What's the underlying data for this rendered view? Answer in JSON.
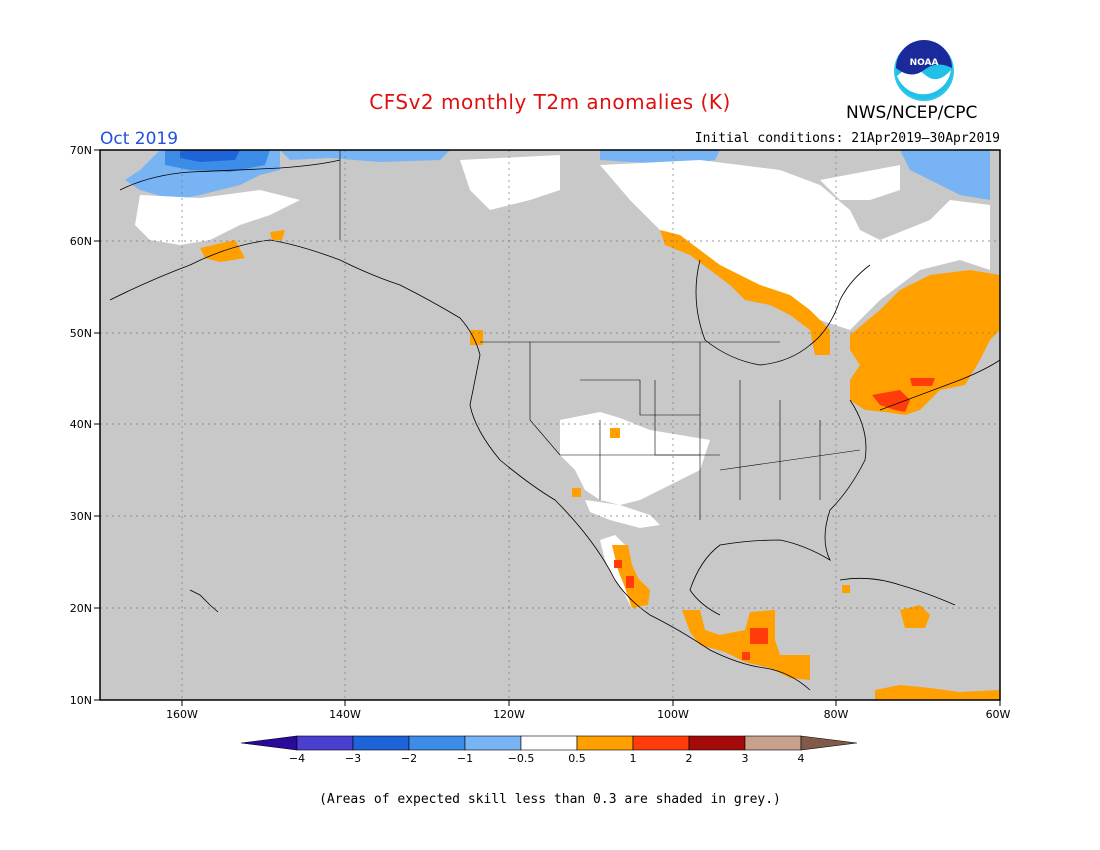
{
  "title": "CFSv2 monthly T2m anomalies (K)",
  "agency": "NWS/NCEP/CPC",
  "logo_text": "NOAA",
  "period": "Oct 2019",
  "initial_conditions": "Initial conditions: 21Apr2019–30Apr2019",
  "footnote": "(Areas of expected skill less than 0.3 are shaded in grey.)",
  "map": {
    "lat_labels": [
      "70N",
      "60N",
      "50N",
      "40N",
      "30N",
      "20N",
      "10N"
    ],
    "lon_labels": [
      "160W",
      "140W",
      "120W",
      "100W",
      "80W",
      "60W"
    ],
    "background_color": "#c8c8c8"
  },
  "legend": {
    "ticks": [
      "−4",
      "−3",
      "−2",
      "−1",
      "−0.5",
      "0.5",
      "1",
      "2",
      "3",
      "4"
    ],
    "colors": [
      "#2a0a9a",
      "#4a3fd0",
      "#1e64d8",
      "#3c8ce8",
      "#78b4f4",
      "#ffffff",
      "#ff9f00",
      "#ff3c0a",
      "#a50a0a",
      "#c8a08c",
      "#825a4a"
    ]
  }
}
